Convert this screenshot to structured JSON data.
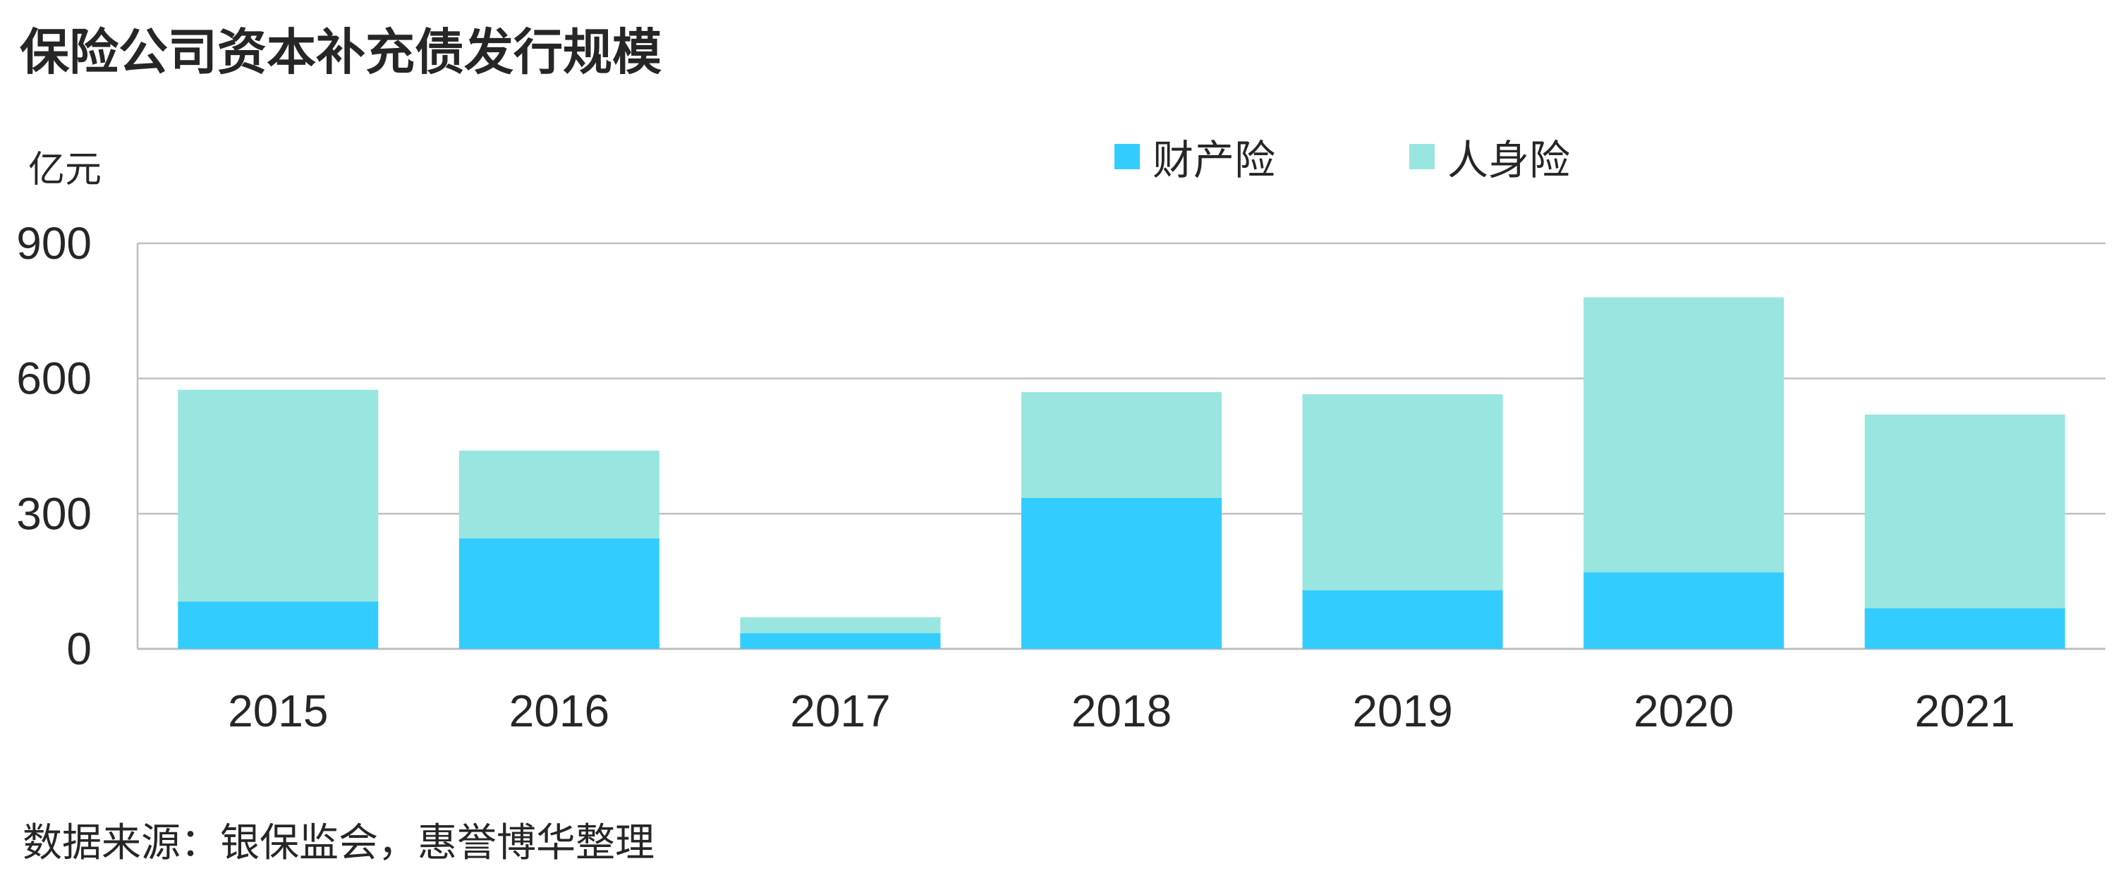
{
  "title": "保险公司资本补充债发行规模",
  "unit_label": "亿元",
  "source": "数据来源：银保监会，惠誉博华整理",
  "legend": [
    {
      "label": "财产险",
      "color": "#33CCFF"
    },
    {
      "label": "人身险",
      "color": "#99E6E0"
    }
  ],
  "chart_data": {
    "type": "bar",
    "stacked": true,
    "categories": [
      "2015",
      "2016",
      "2017",
      "2018",
      "2019",
      "2020",
      "2021"
    ],
    "series": [
      {
        "name": "财产险",
        "color": "#33CCFF",
        "values": [
          105,
          245,
          35,
          335,
          130,
          170,
          90
        ]
      },
      {
        "name": "人身险",
        "color": "#99E6E0",
        "values": [
          470,
          195,
          35,
          235,
          435,
          610,
          430
        ]
      }
    ],
    "ylabel": "亿元",
    "ylim": [
      0,
      900
    ],
    "yticks": [
      0,
      300,
      600,
      900
    ],
    "grid": true,
    "legend_position": "top-right"
  }
}
